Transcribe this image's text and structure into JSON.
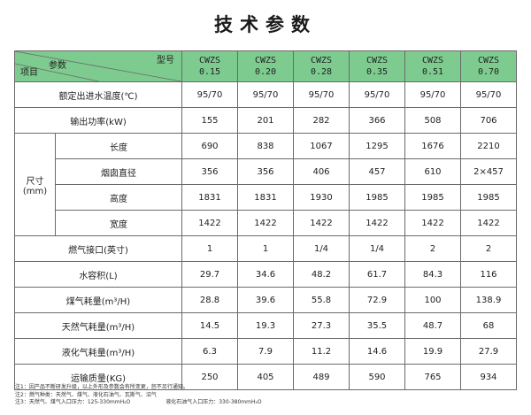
{
  "title": "技术参数",
  "header": {
    "type_label": "型号",
    "param_label": "参数",
    "item_label": "项目",
    "models": [
      {
        "line1": "CWZS",
        "line2": "0.15"
      },
      {
        "line1": "CWZS",
        "line2": "0.20"
      },
      {
        "line1": "CWZS",
        "line2": "0.28"
      },
      {
        "line1": "CWZS",
        "line2": "0.35"
      },
      {
        "line1": "CWZS",
        "line2": "0.51"
      },
      {
        "line1": "CWZS",
        "line2": "0.70"
      }
    ]
  },
  "rows": {
    "temp": {
      "label": "额定出进水温度(℃)",
      "values": [
        "95/70",
        "95/70",
        "95/70",
        "95/70",
        "95/70",
        "95/70"
      ]
    },
    "power": {
      "label": "输出功率(kW)",
      "values": [
        "155",
        "201",
        "282",
        "366",
        "508",
        "706"
      ]
    },
    "size_group": "尺寸(mm)",
    "length": {
      "label": "长度",
      "values": [
        "690",
        "838",
        "1067",
        "1295",
        "1676",
        "2210"
      ]
    },
    "chimney": {
      "label": "烟囱直径",
      "values": [
        "356",
        "356",
        "406",
        "457",
        "610",
        "2×457"
      ]
    },
    "height": {
      "label": "高度",
      "values": [
        "1831",
        "1831",
        "1930",
        "1985",
        "1985",
        "1985"
      ]
    },
    "width": {
      "label": "宽度",
      "values": [
        "1422",
        "1422",
        "1422",
        "1422",
        "1422",
        "1422"
      ]
    },
    "gas_port": {
      "label": "燃气接口(英寸)",
      "values": [
        "1",
        "1",
        "1/4",
        "1/4",
        "2",
        "2"
      ]
    },
    "water_vol": {
      "label": "水容积(L)",
      "values": [
        "29.7",
        "34.6",
        "48.2",
        "61.7",
        "84.3",
        "116"
      ]
    },
    "coal_gas": {
      "label": "煤气耗量(m³/H)",
      "values": [
        "28.8",
        "39.6",
        "55.8",
        "72.9",
        "100",
        "138.9"
      ]
    },
    "natural_gas": {
      "label": "天然气耗量(m³/H)",
      "values": [
        "14.5",
        "19.3",
        "27.3",
        "35.5",
        "48.7",
        "68"
      ]
    },
    "lpg": {
      "label": "液化气耗量(m³/H)",
      "values": [
        "6.3",
        "7.9",
        "11.2",
        "14.6",
        "19.9",
        "27.9"
      ]
    },
    "weight": {
      "label": "运输质量(KG)",
      "values": [
        "250",
        "405",
        "489",
        "590",
        "765",
        "934"
      ]
    }
  },
  "notes": {
    "n1": "注1：因产品不断研发升级，以上外形及参数会有所变更，恕不另行通知。",
    "n2": "注2：燃气种类：天然气、煤气、液化石油气、瓦斯气、沼气",
    "n3a": "注3：天然气、煤气入口压力：125-330mmH₂O",
    "n3b": "液化石油气入口压力：330-380mmH₂O"
  },
  "colors": {
    "header_bg": "#7dcb8f",
    "border": "#6a6a6a"
  }
}
